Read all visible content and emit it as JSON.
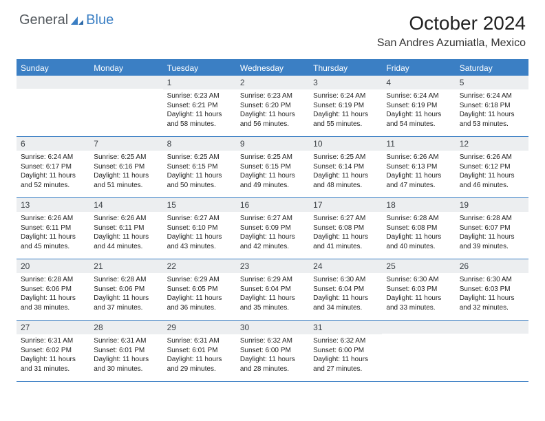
{
  "colors": {
    "accent": "#3b7fc4",
    "daynum_bg": "#eceef0",
    "text_dark": "#222222",
    "logo_gray": "#555a5f"
  },
  "logo": {
    "part1": "General",
    "part2": "Blue"
  },
  "title": "October 2024",
  "location": "San Andres Azumiatla, Mexico",
  "weekdays": [
    "Sunday",
    "Monday",
    "Tuesday",
    "Wednesday",
    "Thursday",
    "Friday",
    "Saturday"
  ],
  "weeks": [
    [
      null,
      null,
      {
        "n": "1",
        "sr": "6:23 AM",
        "ss": "6:21 PM",
        "dl": "11 hours and 58 minutes."
      },
      {
        "n": "2",
        "sr": "6:23 AM",
        "ss": "6:20 PM",
        "dl": "11 hours and 56 minutes."
      },
      {
        "n": "3",
        "sr": "6:24 AM",
        "ss": "6:19 PM",
        "dl": "11 hours and 55 minutes."
      },
      {
        "n": "4",
        "sr": "6:24 AM",
        "ss": "6:19 PM",
        "dl": "11 hours and 54 minutes."
      },
      {
        "n": "5",
        "sr": "6:24 AM",
        "ss": "6:18 PM",
        "dl": "11 hours and 53 minutes."
      }
    ],
    [
      {
        "n": "6",
        "sr": "6:24 AM",
        "ss": "6:17 PM",
        "dl": "11 hours and 52 minutes."
      },
      {
        "n": "7",
        "sr": "6:25 AM",
        "ss": "6:16 PM",
        "dl": "11 hours and 51 minutes."
      },
      {
        "n": "8",
        "sr": "6:25 AM",
        "ss": "6:15 PM",
        "dl": "11 hours and 50 minutes."
      },
      {
        "n": "9",
        "sr": "6:25 AM",
        "ss": "6:15 PM",
        "dl": "11 hours and 49 minutes."
      },
      {
        "n": "10",
        "sr": "6:25 AM",
        "ss": "6:14 PM",
        "dl": "11 hours and 48 minutes."
      },
      {
        "n": "11",
        "sr": "6:26 AM",
        "ss": "6:13 PM",
        "dl": "11 hours and 47 minutes."
      },
      {
        "n": "12",
        "sr": "6:26 AM",
        "ss": "6:12 PM",
        "dl": "11 hours and 46 minutes."
      }
    ],
    [
      {
        "n": "13",
        "sr": "6:26 AM",
        "ss": "6:11 PM",
        "dl": "11 hours and 45 minutes."
      },
      {
        "n": "14",
        "sr": "6:26 AM",
        "ss": "6:11 PM",
        "dl": "11 hours and 44 minutes."
      },
      {
        "n": "15",
        "sr": "6:27 AM",
        "ss": "6:10 PM",
        "dl": "11 hours and 43 minutes."
      },
      {
        "n": "16",
        "sr": "6:27 AM",
        "ss": "6:09 PM",
        "dl": "11 hours and 42 minutes."
      },
      {
        "n": "17",
        "sr": "6:27 AM",
        "ss": "6:08 PM",
        "dl": "11 hours and 41 minutes."
      },
      {
        "n": "18",
        "sr": "6:28 AM",
        "ss": "6:08 PM",
        "dl": "11 hours and 40 minutes."
      },
      {
        "n": "19",
        "sr": "6:28 AM",
        "ss": "6:07 PM",
        "dl": "11 hours and 39 minutes."
      }
    ],
    [
      {
        "n": "20",
        "sr": "6:28 AM",
        "ss": "6:06 PM",
        "dl": "11 hours and 38 minutes."
      },
      {
        "n": "21",
        "sr": "6:28 AM",
        "ss": "6:06 PM",
        "dl": "11 hours and 37 minutes."
      },
      {
        "n": "22",
        "sr": "6:29 AM",
        "ss": "6:05 PM",
        "dl": "11 hours and 36 minutes."
      },
      {
        "n": "23",
        "sr": "6:29 AM",
        "ss": "6:04 PM",
        "dl": "11 hours and 35 minutes."
      },
      {
        "n": "24",
        "sr": "6:30 AM",
        "ss": "6:04 PM",
        "dl": "11 hours and 34 minutes."
      },
      {
        "n": "25",
        "sr": "6:30 AM",
        "ss": "6:03 PM",
        "dl": "11 hours and 33 minutes."
      },
      {
        "n": "26",
        "sr": "6:30 AM",
        "ss": "6:03 PM",
        "dl": "11 hours and 32 minutes."
      }
    ],
    [
      {
        "n": "27",
        "sr": "6:31 AM",
        "ss": "6:02 PM",
        "dl": "11 hours and 31 minutes."
      },
      {
        "n": "28",
        "sr": "6:31 AM",
        "ss": "6:01 PM",
        "dl": "11 hours and 30 minutes."
      },
      {
        "n": "29",
        "sr": "6:31 AM",
        "ss": "6:01 PM",
        "dl": "11 hours and 29 minutes."
      },
      {
        "n": "30",
        "sr": "6:32 AM",
        "ss": "6:00 PM",
        "dl": "11 hours and 28 minutes."
      },
      {
        "n": "31",
        "sr": "6:32 AM",
        "ss": "6:00 PM",
        "dl": "11 hours and 27 minutes."
      },
      null,
      null
    ]
  ],
  "labels": {
    "sunrise": "Sunrise:",
    "sunset": "Sunset:",
    "daylight": "Daylight:"
  }
}
